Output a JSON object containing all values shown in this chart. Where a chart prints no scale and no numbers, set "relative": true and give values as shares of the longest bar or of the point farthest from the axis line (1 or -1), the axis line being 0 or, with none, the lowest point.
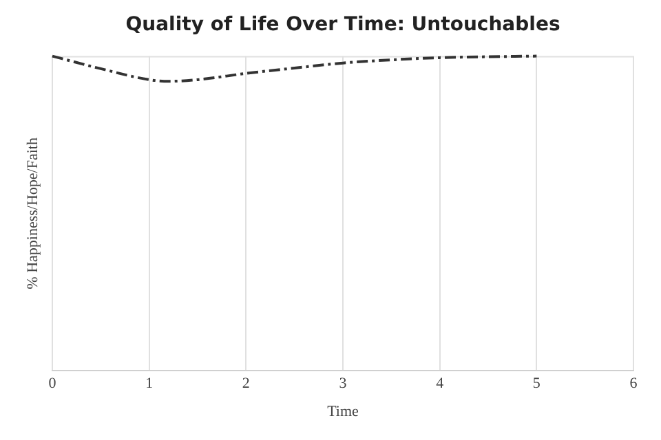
{
  "chart_data": {
    "type": "line",
    "title": "Quality of Life Over Time: Untouchables",
    "xlabel": "Time",
    "ylabel": "% Happiness/Hope/Faith",
    "relative": true,
    "x": [
      0,
      0.5,
      1,
      1.2,
      1.5,
      2,
      2.5,
      3,
      3.5,
      4,
      4.5,
      5
    ],
    "series": [
      {
        "color": "#333333",
        "values": [
          1,
          0.96,
          0.925,
          0.92,
          0.925,
          0.945,
          0.962,
          0.978,
          0.988,
          0.995,
          0.998,
          1
        ]
      }
    ],
    "xlim": [
      0,
      6
    ],
    "xticks": [
      0,
      1,
      2,
      3,
      4,
      5,
      6
    ],
    "grid": "x",
    "line_style": "dashed",
    "marker": "none",
    "legend": false
  }
}
